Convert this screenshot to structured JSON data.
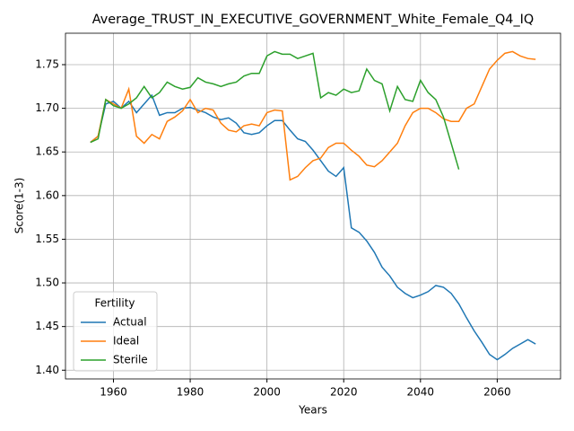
{
  "chart_data": {
    "type": "line",
    "title": "Average_TRUST_IN_EXECUTIVE_GOVERNMENT_White_Female_Q4_IQ",
    "x_label": "Years",
    "y_label": "Score(1-3)",
    "legend_title": "Fertility",
    "legend_position": "lower left",
    "grid": true,
    "xlim": [
      1947.5,
      2076.5
    ],
    "ylim": [
      1.39,
      1.786
    ],
    "xticks": [
      1960,
      1980,
      2000,
      2020,
      2040,
      2060
    ],
    "yticks": [
      {
        "value": 1.4,
        "label": "1.40"
      },
      1.45,
      {
        "value": 1.5,
        "label": "1.50"
      },
      1.55,
      {
        "value": 1.6,
        "label": "1.60"
      },
      1.65,
      {
        "value": 1.7,
        "label": "1.70"
      },
      1.75
    ],
    "x": [
      1954,
      1956,
      1958,
      1960,
      1962,
      1964,
      1966,
      1968,
      1970,
      1972,
      1974,
      1976,
      1978,
      1980,
      1982,
      1984,
      1986,
      1988,
      1990,
      1992,
      1994,
      1996,
      1998,
      2000,
      2002,
      2004,
      2006,
      2008,
      2010,
      2012,
      2014,
      2016,
      2018,
      2020,
      2022,
      2024,
      2026,
      2028,
      2030,
      2032,
      2034,
      2036,
      2038,
      2040,
      2042,
      2044,
      2046,
      2048,
      2050,
      2052,
      2054,
      2056,
      2058,
      2060,
      2062,
      2064,
      2066,
      2068,
      2070
    ],
    "series": [
      {
        "name": "Actual",
        "color": "#1f77b4",
        "values": [
          1.661,
          1.668,
          1.705,
          1.708,
          1.7,
          1.708,
          1.695,
          1.705,
          1.715,
          1.692,
          1.695,
          1.695,
          1.7,
          1.701,
          1.698,
          1.695,
          1.69,
          1.687,
          1.689,
          1.683,
          1.672,
          1.67,
          1.672,
          1.68,
          1.686,
          1.686,
          1.675,
          1.665,
          1.662,
          1.652,
          1.64,
          1.628,
          1.622,
          1.632,
          1.563,
          1.558,
          1.548,
          1.535,
          1.518,
          1.508,
          1.495,
          1.488,
          1.483,
          1.486,
          1.49,
          1.497,
          1.495,
          1.488,
          1.476,
          1.46,
          1.445,
          1.432,
          1.418,
          1.412,
          1.418,
          1.425,
          1.43,
          1.435,
          1.43
        ]
      },
      {
        "name": "Ideal",
        "color": "#ff7f0e",
        "values": [
          1.661,
          1.668,
          1.71,
          1.705,
          1.7,
          1.722,
          1.668,
          1.66,
          1.67,
          1.665,
          1.685,
          1.69,
          1.697,
          1.71,
          1.695,
          1.7,
          1.698,
          1.683,
          1.675,
          1.673,
          1.68,
          1.682,
          1.68,
          1.695,
          1.698,
          1.697,
          1.618,
          1.622,
          1.632,
          1.64,
          1.643,
          1.655,
          1.66,
          1.66,
          1.652,
          1.645,
          1.635,
          1.633,
          1.64,
          1.65,
          1.66,
          1.68,
          1.695,
          1.7,
          1.7,
          1.695,
          1.688,
          1.685,
          1.685,
          1.7,
          1.705,
          1.725,
          1.745,
          1.755,
          1.763,
          1.765,
          1.76,
          1.757,
          1.756
        ]
      },
      {
        "name": "Sterile",
        "color": "#2ca02c",
        "values": [
          1.661,
          1.665,
          1.71,
          1.703,
          1.7,
          1.705,
          1.712,
          1.725,
          1.712,
          1.718,
          1.73,
          1.725,
          1.722,
          1.724,
          1.735,
          1.73,
          1.728,
          1.725,
          1.728,
          1.73,
          1.737,
          1.74,
          1.74,
          1.76,
          1.765,
          1.762,
          1.762,
          1.757,
          1.76,
          1.763,
          1.712,
          1.718,
          1.715,
          1.722,
          1.718,
          1.72,
          1.745,
          1.732,
          1.728,
          1.697,
          1.725,
          1.71,
          1.708,
          1.732,
          1.718,
          1.71,
          1.69,
          1.66,
          1.63,
          null,
          null,
          null,
          null,
          null,
          null,
          null,
          null,
          null,
          null
        ]
      }
    ]
  }
}
